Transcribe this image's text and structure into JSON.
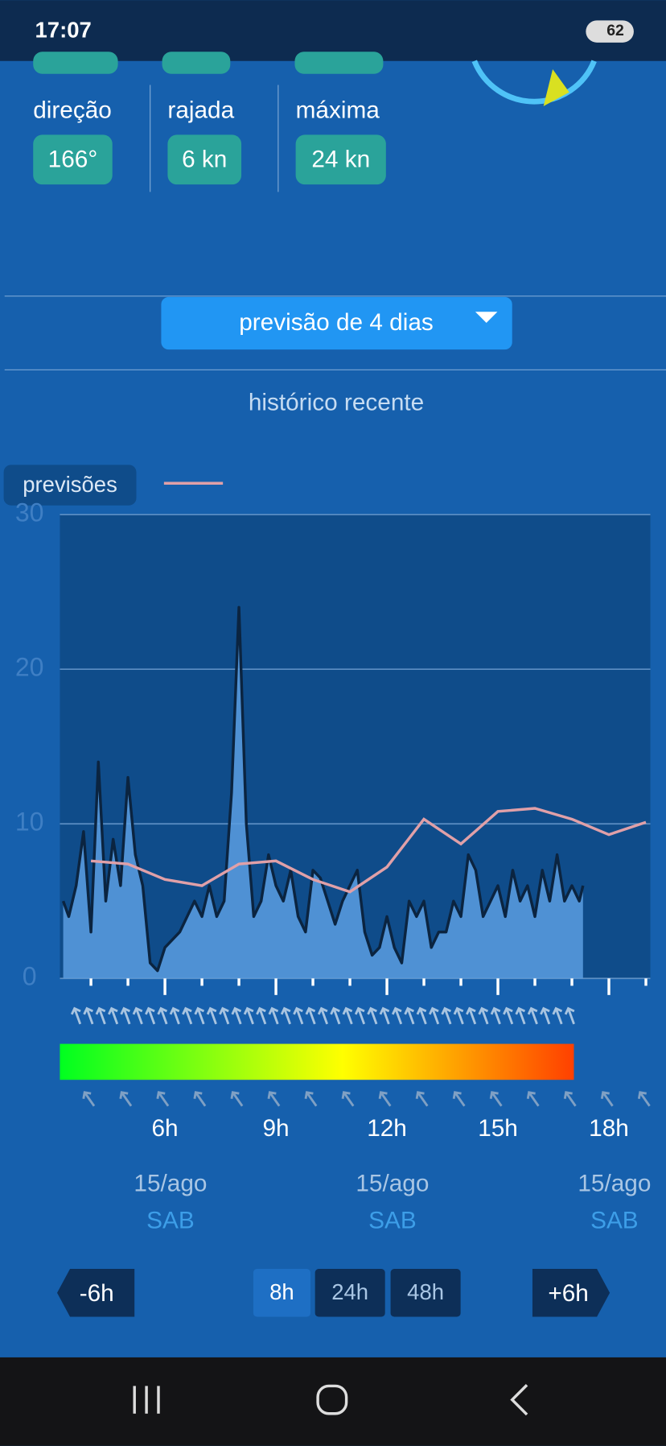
{
  "status_bar": {
    "time": "17:07",
    "battery": "62"
  },
  "stats": [
    {
      "label": "direção",
      "value": "166°"
    },
    {
      "label": "rajada",
      "value": "6 kn"
    },
    {
      "label": "máxima",
      "value": "24 kn"
    }
  ],
  "dropdown": "previsão de 4 dias",
  "section_title": "histórico recente",
  "chart_data": {
    "type": "line",
    "legend_label": "previsões",
    "xlim": [
      3.16,
      19.12
    ],
    "ylim": [
      0,
      30
    ],
    "yticks": [
      0,
      10,
      20,
      30
    ],
    "xticks": [
      {
        "value": 6,
        "label": "6h"
      },
      {
        "value": 9,
        "label": "9h"
      },
      {
        "value": 12,
        "label": "12h"
      },
      {
        "value": 15,
        "label": "15h"
      },
      {
        "value": 18,
        "label": "18h"
      }
    ],
    "xminorticks": [
      4,
      5,
      7,
      8,
      10,
      11,
      13,
      14,
      16,
      17,
      19
    ],
    "grid": true,
    "series": [
      {
        "color": "#0b2440",
        "fill": "#5b9ee0",
        "x": [
          3.25,
          3.4,
          3.6,
          3.8,
          4.0,
          4.2,
          4.4,
          4.6,
          4.8,
          5.0,
          5.2,
          5.4,
          5.6,
          5.8,
          6.0,
          6.2,
          6.4,
          6.6,
          6.8,
          7.0,
          7.2,
          7.4,
          7.6,
          7.8,
          8.0,
          8.2,
          8.4,
          8.6,
          8.8,
          9.0,
          9.2,
          9.4,
          9.6,
          9.8,
          10.0,
          10.2,
          10.4,
          10.6,
          10.8,
          11.0,
          11.2,
          11.4,
          11.6,
          11.8,
          12.0,
          12.2,
          12.4,
          12.6,
          12.8,
          13.0,
          13.2,
          13.4,
          13.6,
          13.8,
          14.0,
          14.2,
          14.4,
          14.6,
          14.8,
          15.0,
          15.2,
          15.4,
          15.6,
          15.8,
          16.0,
          16.2,
          16.4,
          16.6,
          16.8,
          17.0,
          17.2,
          17.3
        ],
        "values": [
          5,
          4,
          6,
          9.5,
          3,
          14,
          5,
          9,
          6,
          13,
          8,
          6,
          1,
          0.5,
          2,
          2.5,
          3,
          4,
          5,
          4,
          6,
          4,
          5,
          12,
          24,
          10,
          4,
          5,
          8,
          6,
          5,
          7,
          4,
          3,
          7,
          6.5,
          5,
          3.5,
          5,
          6,
          7,
          3,
          1.5,
          2,
          4,
          2,
          1,
          5,
          4,
          5,
          2,
          3,
          3,
          5,
          4,
          8,
          7,
          4,
          5,
          6,
          4,
          7,
          5,
          6,
          4,
          7,
          5,
          8,
          5,
          6,
          5,
          6
        ]
      },
      {
        "name": "previsões",
        "color": "#e0a0a8",
        "x": [
          4,
          5,
          6,
          7,
          8,
          9,
          10,
          11,
          12,
          13,
          14,
          15,
          16,
          17,
          18,
          19
        ],
        "values": [
          7.6,
          7.4,
          6.4,
          6.0,
          7.4,
          7.6,
          6.4,
          5.6,
          7.2,
          10.3,
          8.7,
          10.8,
          11.0,
          10.3,
          9.3,
          10.1
        ]
      }
    ]
  },
  "dates": [
    {
      "date": "15/ago",
      "day": "SAB"
    },
    {
      "date": "15/ago",
      "day": "SAB"
    },
    {
      "date": "15/ago",
      "day": "SAB"
    }
  ],
  "buttons": {
    "back": "-6h",
    "ranges": [
      "8h",
      "24h",
      "48h"
    ],
    "forward": "+6h"
  }
}
